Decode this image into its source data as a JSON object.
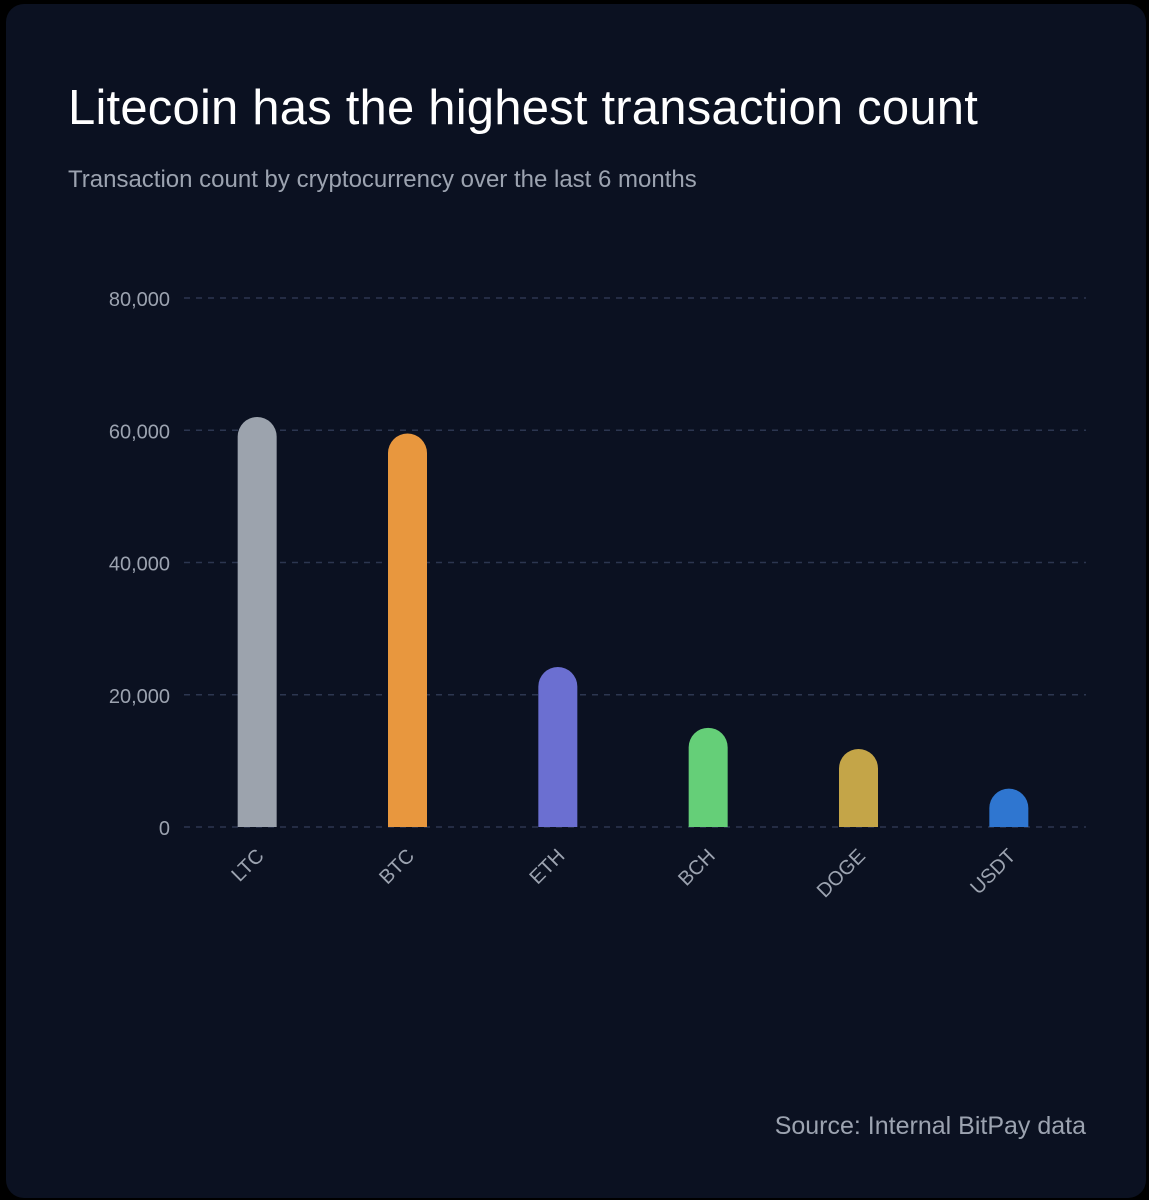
{
  "header": {
    "title": "Litecoin has the highest transaction count",
    "subtitle": "Transaction count by cryptocurrency over the last 6 months"
  },
  "footer": {
    "source": "Source: Internal BitPay data"
  },
  "colors": {
    "background": "#0b1121",
    "grid": "#2c3650",
    "tick_text": "#9ca3b0"
  },
  "chart_data": {
    "type": "bar",
    "title": "Litecoin has the highest transaction count",
    "subtitle": "Transaction count by cryptocurrency over the last 6 months",
    "categories": [
      "LTC",
      "BTC",
      "ETH",
      "BCH",
      "DOGE",
      "USDT"
    ],
    "values": [
      62000,
      59500,
      24200,
      15000,
      11800,
      5800
    ],
    "colors": [
      "#9ca3ad",
      "#e8973e",
      "#6b6fd1",
      "#65cf78",
      "#c4a548",
      "#2f76d0"
    ],
    "ylim": [
      0,
      80000
    ],
    "yticks": [
      0,
      20000,
      40000,
      60000,
      80000
    ],
    "ytick_labels": [
      "0",
      "20,000",
      "40,000",
      "60,000",
      "80,000"
    ],
    "grid": true,
    "legend": "none",
    "xlabel": "",
    "ylabel": ""
  }
}
